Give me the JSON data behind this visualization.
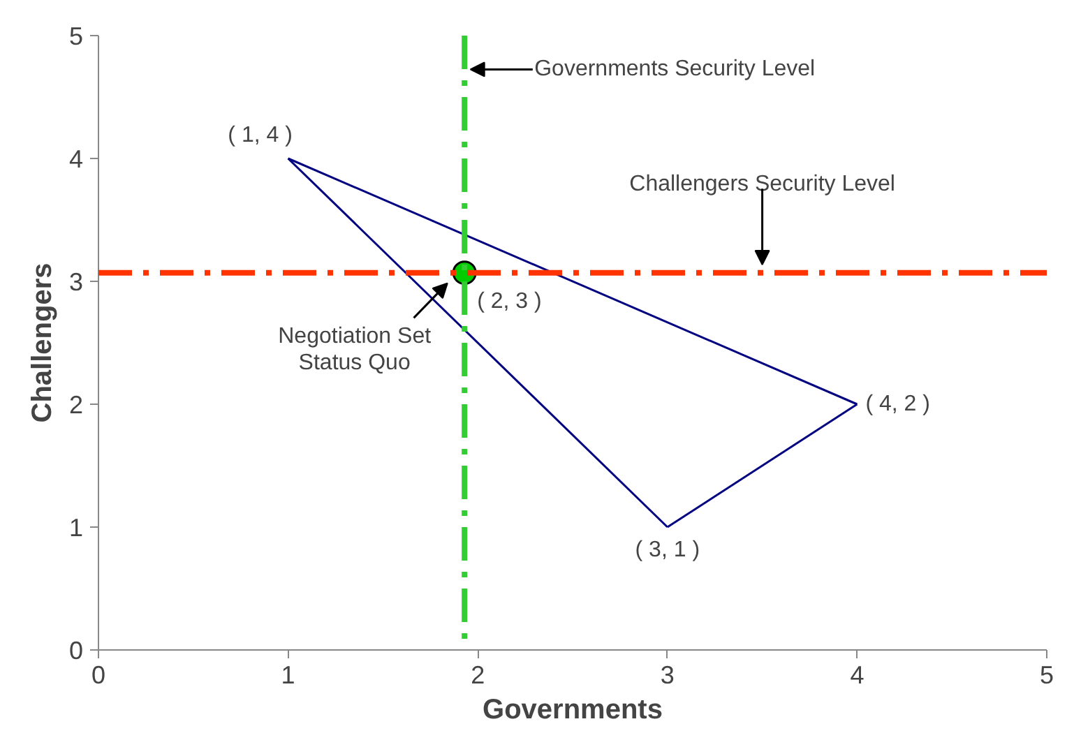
{
  "chart_data": {
    "type": "line",
    "xlabel": "Governments",
    "ylabel": "Challengers",
    "xlim": [
      0,
      5
    ],
    "ylim": [
      0,
      5
    ],
    "xticks": [
      0,
      1,
      2,
      3,
      4,
      5
    ],
    "yticks": [
      0,
      1,
      2,
      3,
      4,
      5
    ],
    "grid": false,
    "series": [
      {
        "color": "#000080",
        "x": [
          1,
          4
        ],
        "values": [
          4,
          2
        ],
        "marker": "none"
      },
      {
        "color": "#000080",
        "x": [
          3,
          4
        ],
        "values": [
          1,
          2
        ],
        "marker": "none"
      },
      {
        "color": "#000080",
        "x": [
          1,
          3
        ],
        "values": [
          4,
          1
        ],
        "marker": "none"
      },
      {
        "type": "scatter",
        "color": "#00cc00",
        "x": [
          1.93
        ],
        "values": [
          3.07
        ],
        "marker": "circle"
      }
    ],
    "ref_lines": [
      {
        "axis": "x",
        "value": 1.93,
        "label": "Governments Security Level",
        "color": "#33cc33",
        "line_style": "dashdot"
      },
      {
        "axis": "y",
        "value": 3.07,
        "label": "Challengers Security Level",
        "color": "#ff3300",
        "line_style": "dashdot"
      }
    ],
    "annotations": [
      {
        "text": "( 1, 4 )",
        "x": 1,
        "y": 4
      },
      {
        "text": "( 4, 2 )",
        "x": 4,
        "y": 2
      },
      {
        "text": "( 3, 1 )",
        "x": 3,
        "y": 1
      },
      {
        "text": "( 2, 3 )",
        "x": 1.93,
        "y": 3.07
      },
      "Negotiation Set\nStatus Quo"
    ]
  }
}
